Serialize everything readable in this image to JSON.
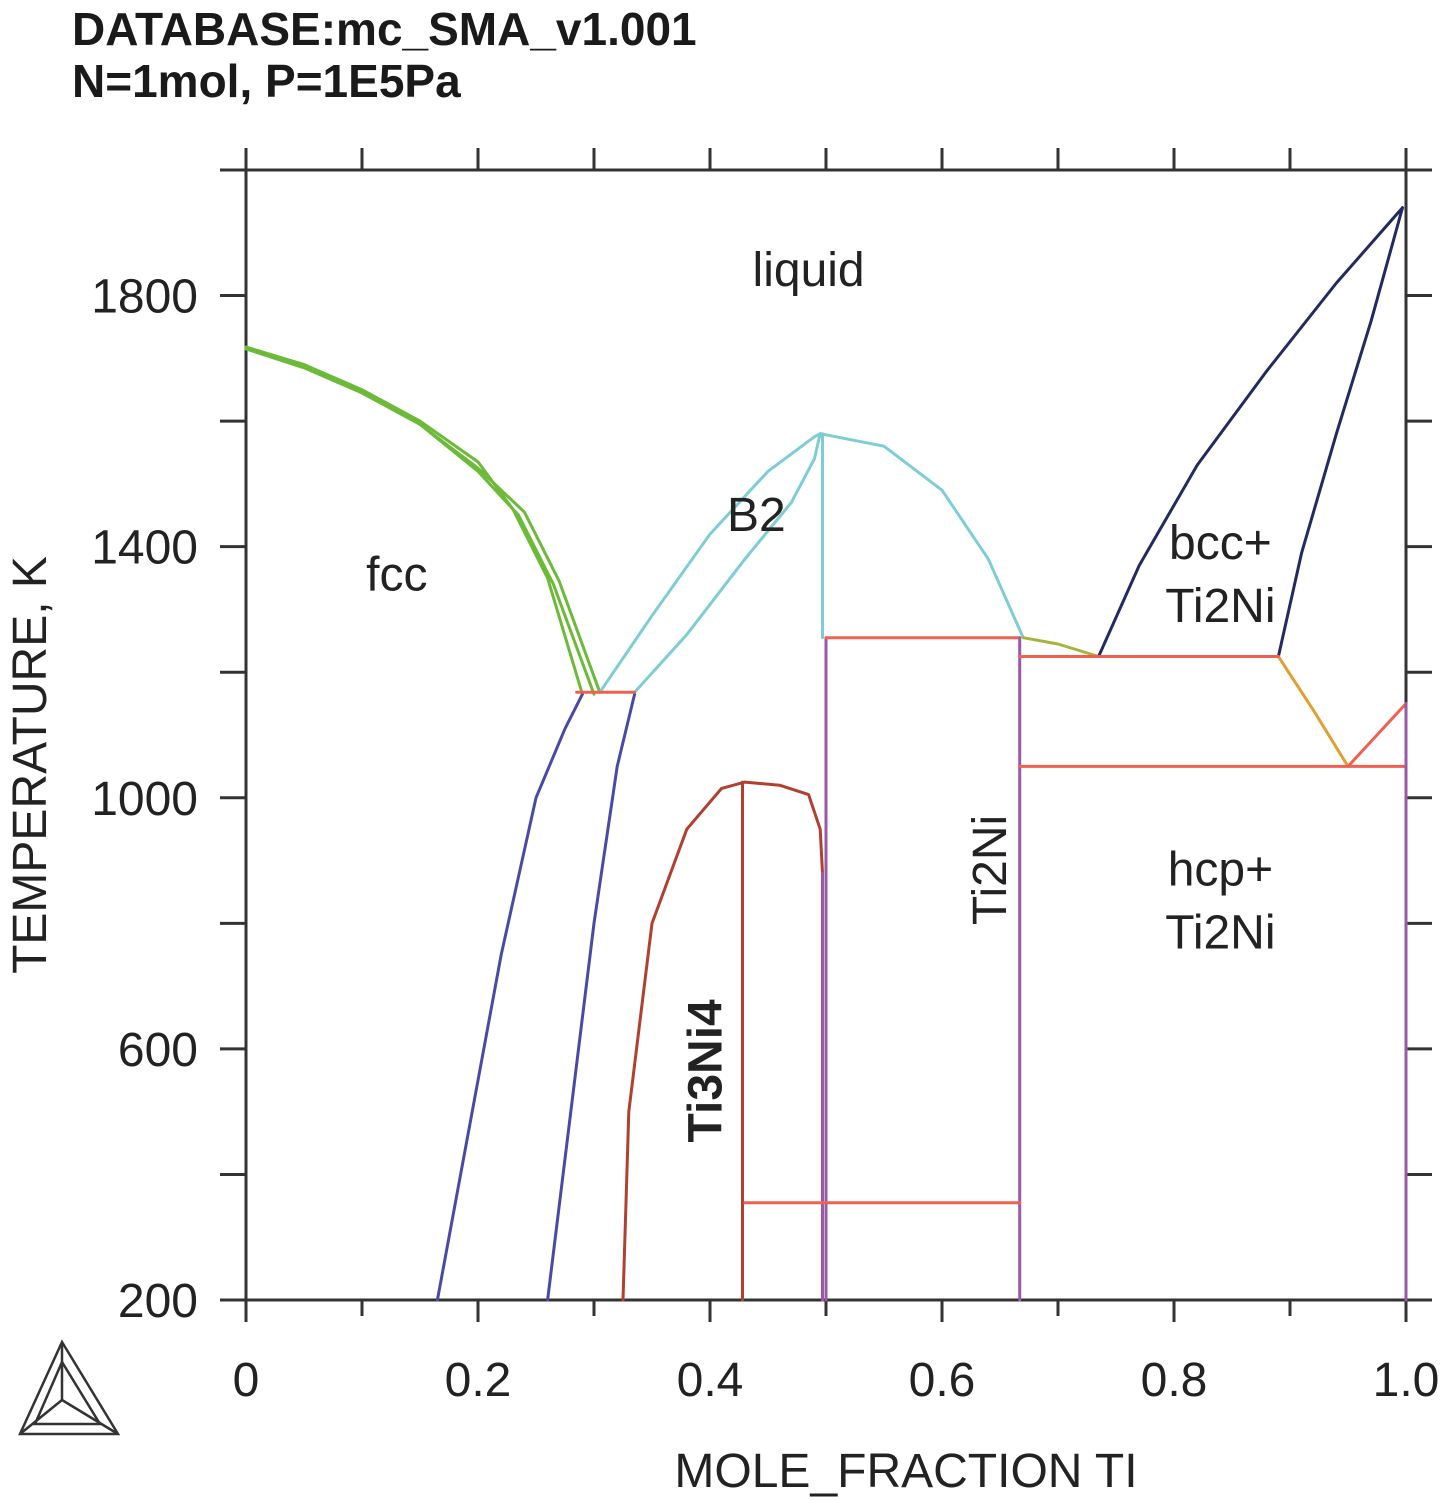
{
  "header": {
    "line1": "DATABASE:mc_SMA_v1.001",
    "line2": "N=1mol, P=1E5Pa"
  },
  "chart_data": {
    "type": "line",
    "xlabel": "MOLE_FRACTION TI",
    "ylabel": "TEMPERATURE, K",
    "xlim": [
      0,
      1.0
    ],
    "ylim": [
      200,
      2000
    ],
    "x_ticks": [
      0,
      0.2,
      0.4,
      0.6,
      0.8,
      1.0
    ],
    "x_tick_labels": [
      "0",
      "0.2",
      "0.4",
      "0.6",
      "0.8",
      "1.0"
    ],
    "y_ticks": [
      200,
      600,
      1000,
      1400,
      1800
    ],
    "y_tick_labels": [
      "200",
      "600",
      "1000",
      "1400",
      "1800"
    ],
    "grid": false,
    "legend": "none",
    "region_labels": [
      {
        "text": "liquid",
        "x": 0.485,
        "y": 1815
      },
      {
        "text": "B2",
        "x": 0.44,
        "y": 1425
      },
      {
        "text": "fcc",
        "x": 0.13,
        "y": 1330
      },
      {
        "text": "bcc+",
        "x": 0.84,
        "y": 1380
      },
      {
        "text": "Ti2Ni",
        "x": 0.84,
        "y": 1280
      },
      {
        "text": "hcp+",
        "x": 0.84,
        "y": 860
      },
      {
        "text": "Ti2Ni",
        "x": 0.84,
        "y": 760
      }
    ],
    "phase_labels": [
      {
        "text": "Ti3Ni4",
        "x": 0.41,
        "y": 565,
        "style": "bold"
      },
      {
        "text": "Ti2Ni",
        "x": 0.655,
        "y": 885,
        "style": "normal"
      }
    ],
    "series": [
      {
        "color": "#6dba3a",
        "x": [
          0,
          0.05,
          0.1,
          0.15,
          0.2,
          0.23,
          0.26,
          0.29
        ],
        "y": [
          1715,
          1690,
          1650,
          1600,
          1535,
          1460,
          1350,
          1165
        ]
      },
      {
        "color": "#6dba3a",
        "x": [
          0,
          0.05,
          0.1,
          0.15,
          0.2,
          0.235,
          0.265,
          0.3
        ],
        "y": [
          1715,
          1685,
          1645,
          1595,
          1520,
          1450,
          1340,
          1165
        ]
      },
      {
        "color": "#6dba3a",
        "x": [
          0,
          0.05,
          0.1,
          0.15,
          0.2,
          0.24,
          0.27,
          0.305
        ],
        "y": [
          1718,
          1690,
          1645,
          1595,
          1525,
          1455,
          1345,
          1168
        ]
      },
      {
        "color": "#7fcdd4",
        "x": [
          0.305,
          0.35,
          0.4,
          0.45,
          0.49,
          0.495
        ],
        "y": [
          1168,
          1290,
          1420,
          1520,
          1575,
          1580
        ]
      },
      {
        "color": "#7fcdd4",
        "x": [
          0.335,
          0.38,
          0.43,
          0.47,
          0.49,
          0.495
        ],
        "y": [
          1168,
          1260,
          1380,
          1470,
          1540,
          1580
        ]
      },
      {
        "color": "#7fcdd4",
        "x": [
          0.495,
          0.55,
          0.6,
          0.64,
          0.67
        ],
        "y": [
          1580,
          1560,
          1490,
          1380,
          1255
        ]
      },
      {
        "color": "#7fcdd4",
        "x": [
          0.497,
          0.497
        ],
        "y": [
          1580,
          1255
        ]
      },
      {
        "color": "#a8b23c",
        "x": [
          0.67,
          0.7,
          0.735
        ],
        "y": [
          1255,
          1245,
          1225
        ]
      },
      {
        "color": "#222a60",
        "x": [
          0.735,
          0.77,
          0.82,
          0.88,
          0.94,
          0.997
        ],
        "y": [
          1225,
          1370,
          1530,
          1680,
          1820,
          1940
        ]
      },
      {
        "color": "#222a60",
        "x": [
          0.89,
          0.91,
          0.94,
          0.97,
          0.997
        ],
        "y": [
          1225,
          1390,
          1580,
          1760,
          1940
        ]
      },
      {
        "color": "#e0a030",
        "x": [
          0.89,
          0.92,
          0.95
        ],
        "y": [
          1225,
          1140,
          1050
        ]
      },
      {
        "color": "#f06050",
        "x": [
          0.95,
          0.975,
          1.0
        ],
        "y": [
          1050,
          1100,
          1150
        ]
      },
      {
        "color": "#4a4aa6",
        "x": [
          0.165,
          0.19,
          0.22,
          0.25,
          0.275,
          0.29
        ],
        "y": [
          200,
          450,
          750,
          1000,
          1110,
          1165
        ]
      },
      {
        "color": "#4a4aa6",
        "x": [
          0.26,
          0.28,
          0.3,
          0.32,
          0.335
        ],
        "y": [
          200,
          500,
          800,
          1050,
          1165
        ]
      },
      {
        "color": "#f06050",
        "x": [
          0.285,
          0.335
        ],
        "y": [
          1168,
          1168
        ]
      },
      {
        "color": "#b04030",
        "x": [
          0.325,
          0.33,
          0.35,
          0.38,
          0.41,
          0.43,
          0.46,
          0.485,
          0.495,
          0.497
        ],
        "y": [
          200,
          500,
          800,
          950,
          1015,
          1025,
          1020,
          1005,
          950,
          880
        ]
      },
      {
        "color": "#b04030",
        "x": [
          0.428,
          0.428
        ],
        "y": [
          1025,
          200
        ]
      },
      {
        "color": "#9a5aa8",
        "x": [
          0.497,
          0.497
        ],
        "y": [
          880,
          200
        ]
      },
      {
        "color": "#9a5aa8",
        "x": [
          0.5,
          0.5
        ],
        "y": [
          1255,
          200
        ]
      },
      {
        "color": "#f06050",
        "x": [
          0.5,
          0.667
        ],
        "y": [
          1255,
          1255
        ]
      },
      {
        "color": "#9a5aa8",
        "x": [
          0.667,
          0.667
        ],
        "y": [
          1255,
          200
        ]
      },
      {
        "color": "#f06050",
        "x": [
          0.43,
          0.667
        ],
        "y": [
          355,
          355
        ]
      },
      {
        "color": "#f06050",
        "x": [
          0.667,
          0.89
        ],
        "y": [
          1225,
          1225
        ]
      },
      {
        "color": "#f06050",
        "x": [
          0.667,
          1.0
        ],
        "y": [
          1050,
          1050
        ]
      },
      {
        "color": "#9a5aa8",
        "x": [
          1.0,
          1.0
        ],
        "y": [
          1150,
          200
        ]
      }
    ]
  }
}
